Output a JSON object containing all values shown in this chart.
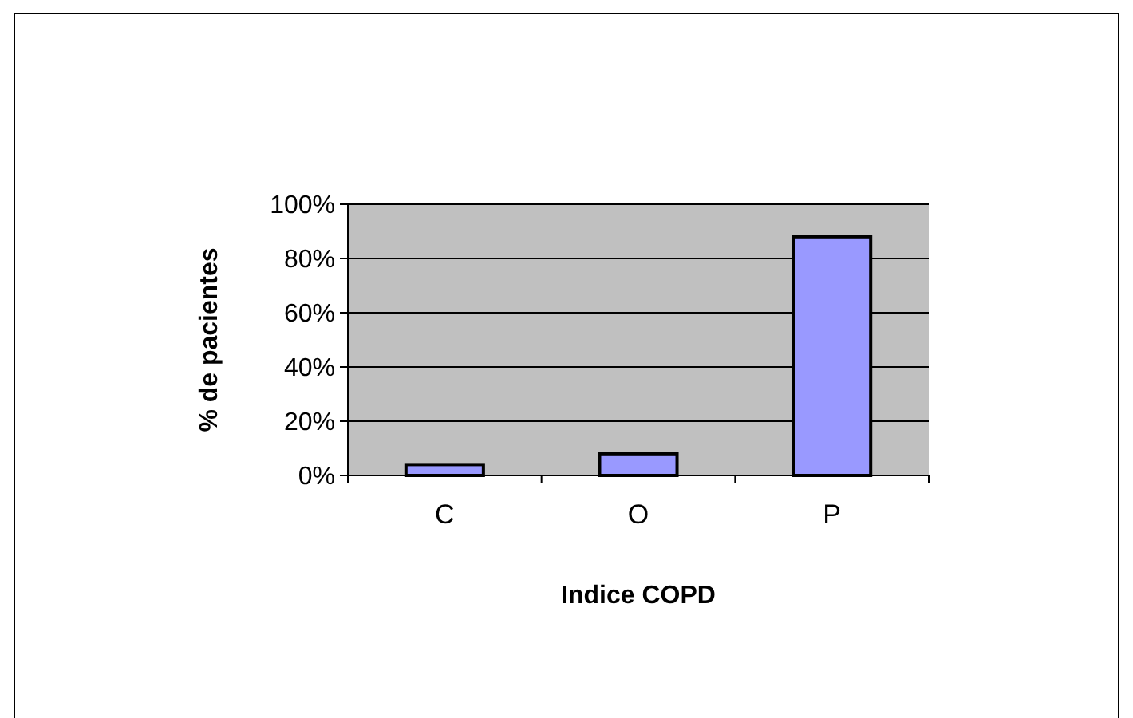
{
  "chart_data": {
    "type": "bar",
    "xlabel": "Indice COPD",
    "ylabel": "% de pacientes",
    "categories": [
      "C",
      "O",
      "P"
    ],
    "values": [
      4,
      8,
      88
    ],
    "color": "#9999ff",
    "ylim": [
      0,
      100
    ],
    "yticks": [
      {
        "value": 0,
        "label": "0%"
      },
      {
        "value": 20,
        "label": "20%"
      },
      {
        "value": 40,
        "label": "40%"
      },
      {
        "value": 60,
        "label": "60%"
      },
      {
        "value": 80,
        "label": "80%"
      },
      {
        "value": 100,
        "label": "100%"
      }
    ],
    "grid": "y"
  }
}
